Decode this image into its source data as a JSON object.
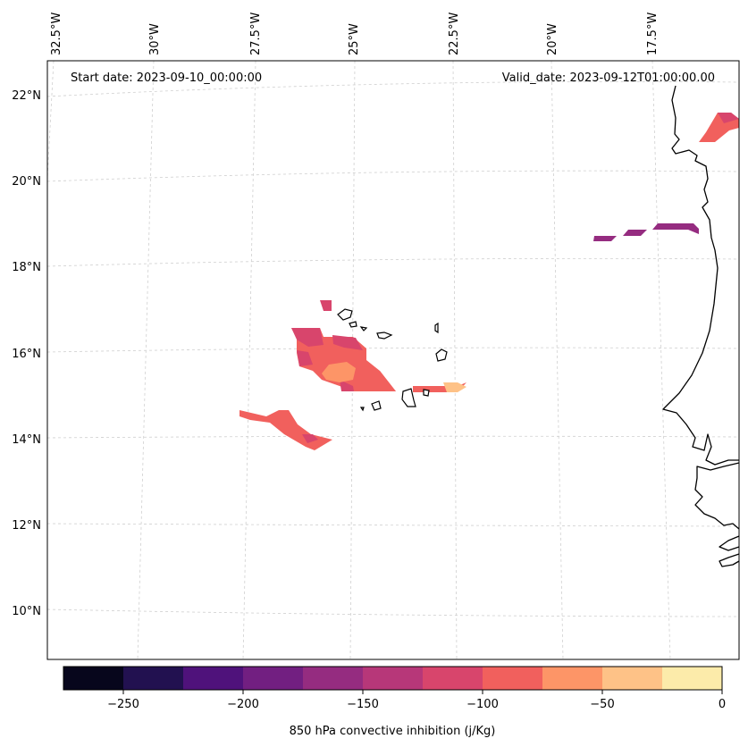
{
  "header": {
    "start_date": "Start date: 2023-09-10_00:00:00",
    "valid_date": "Valid_date: 2023-09-12T01:00:00.00"
  },
  "axes": {
    "longitude_labels": [
      "32.5°W",
      "30°W",
      "27.5°W",
      "25°W",
      "22.5°W",
      "20°W",
      "17.5°W"
    ],
    "latitude_labels": [
      "22°N",
      "20°N",
      "18°N",
      "16°N",
      "14°N",
      "12°N",
      "10°N"
    ],
    "gridlines": true
  },
  "colorbar": {
    "label": "850 hPa convective inhibition (j/Kg)",
    "tick_labels": [
      "−250",
      "−200",
      "−150",
      "−100",
      "−50",
      "0"
    ],
    "range": [
      -275,
      0
    ],
    "step": 25,
    "colors": [
      "#07061c",
      "#221150",
      "#4f127b",
      "#721f81",
      "#952c80",
      "#b73779",
      "#d8456c",
      "#f1605d",
      "#fd9567",
      "#fec287",
      "#fcebaa"
    ]
  },
  "map": {
    "region": "Eastern tropical Atlantic, Cape Verde Islands and West African coast",
    "projection": "rotated",
    "coastline_color": "#000000"
  }
}
